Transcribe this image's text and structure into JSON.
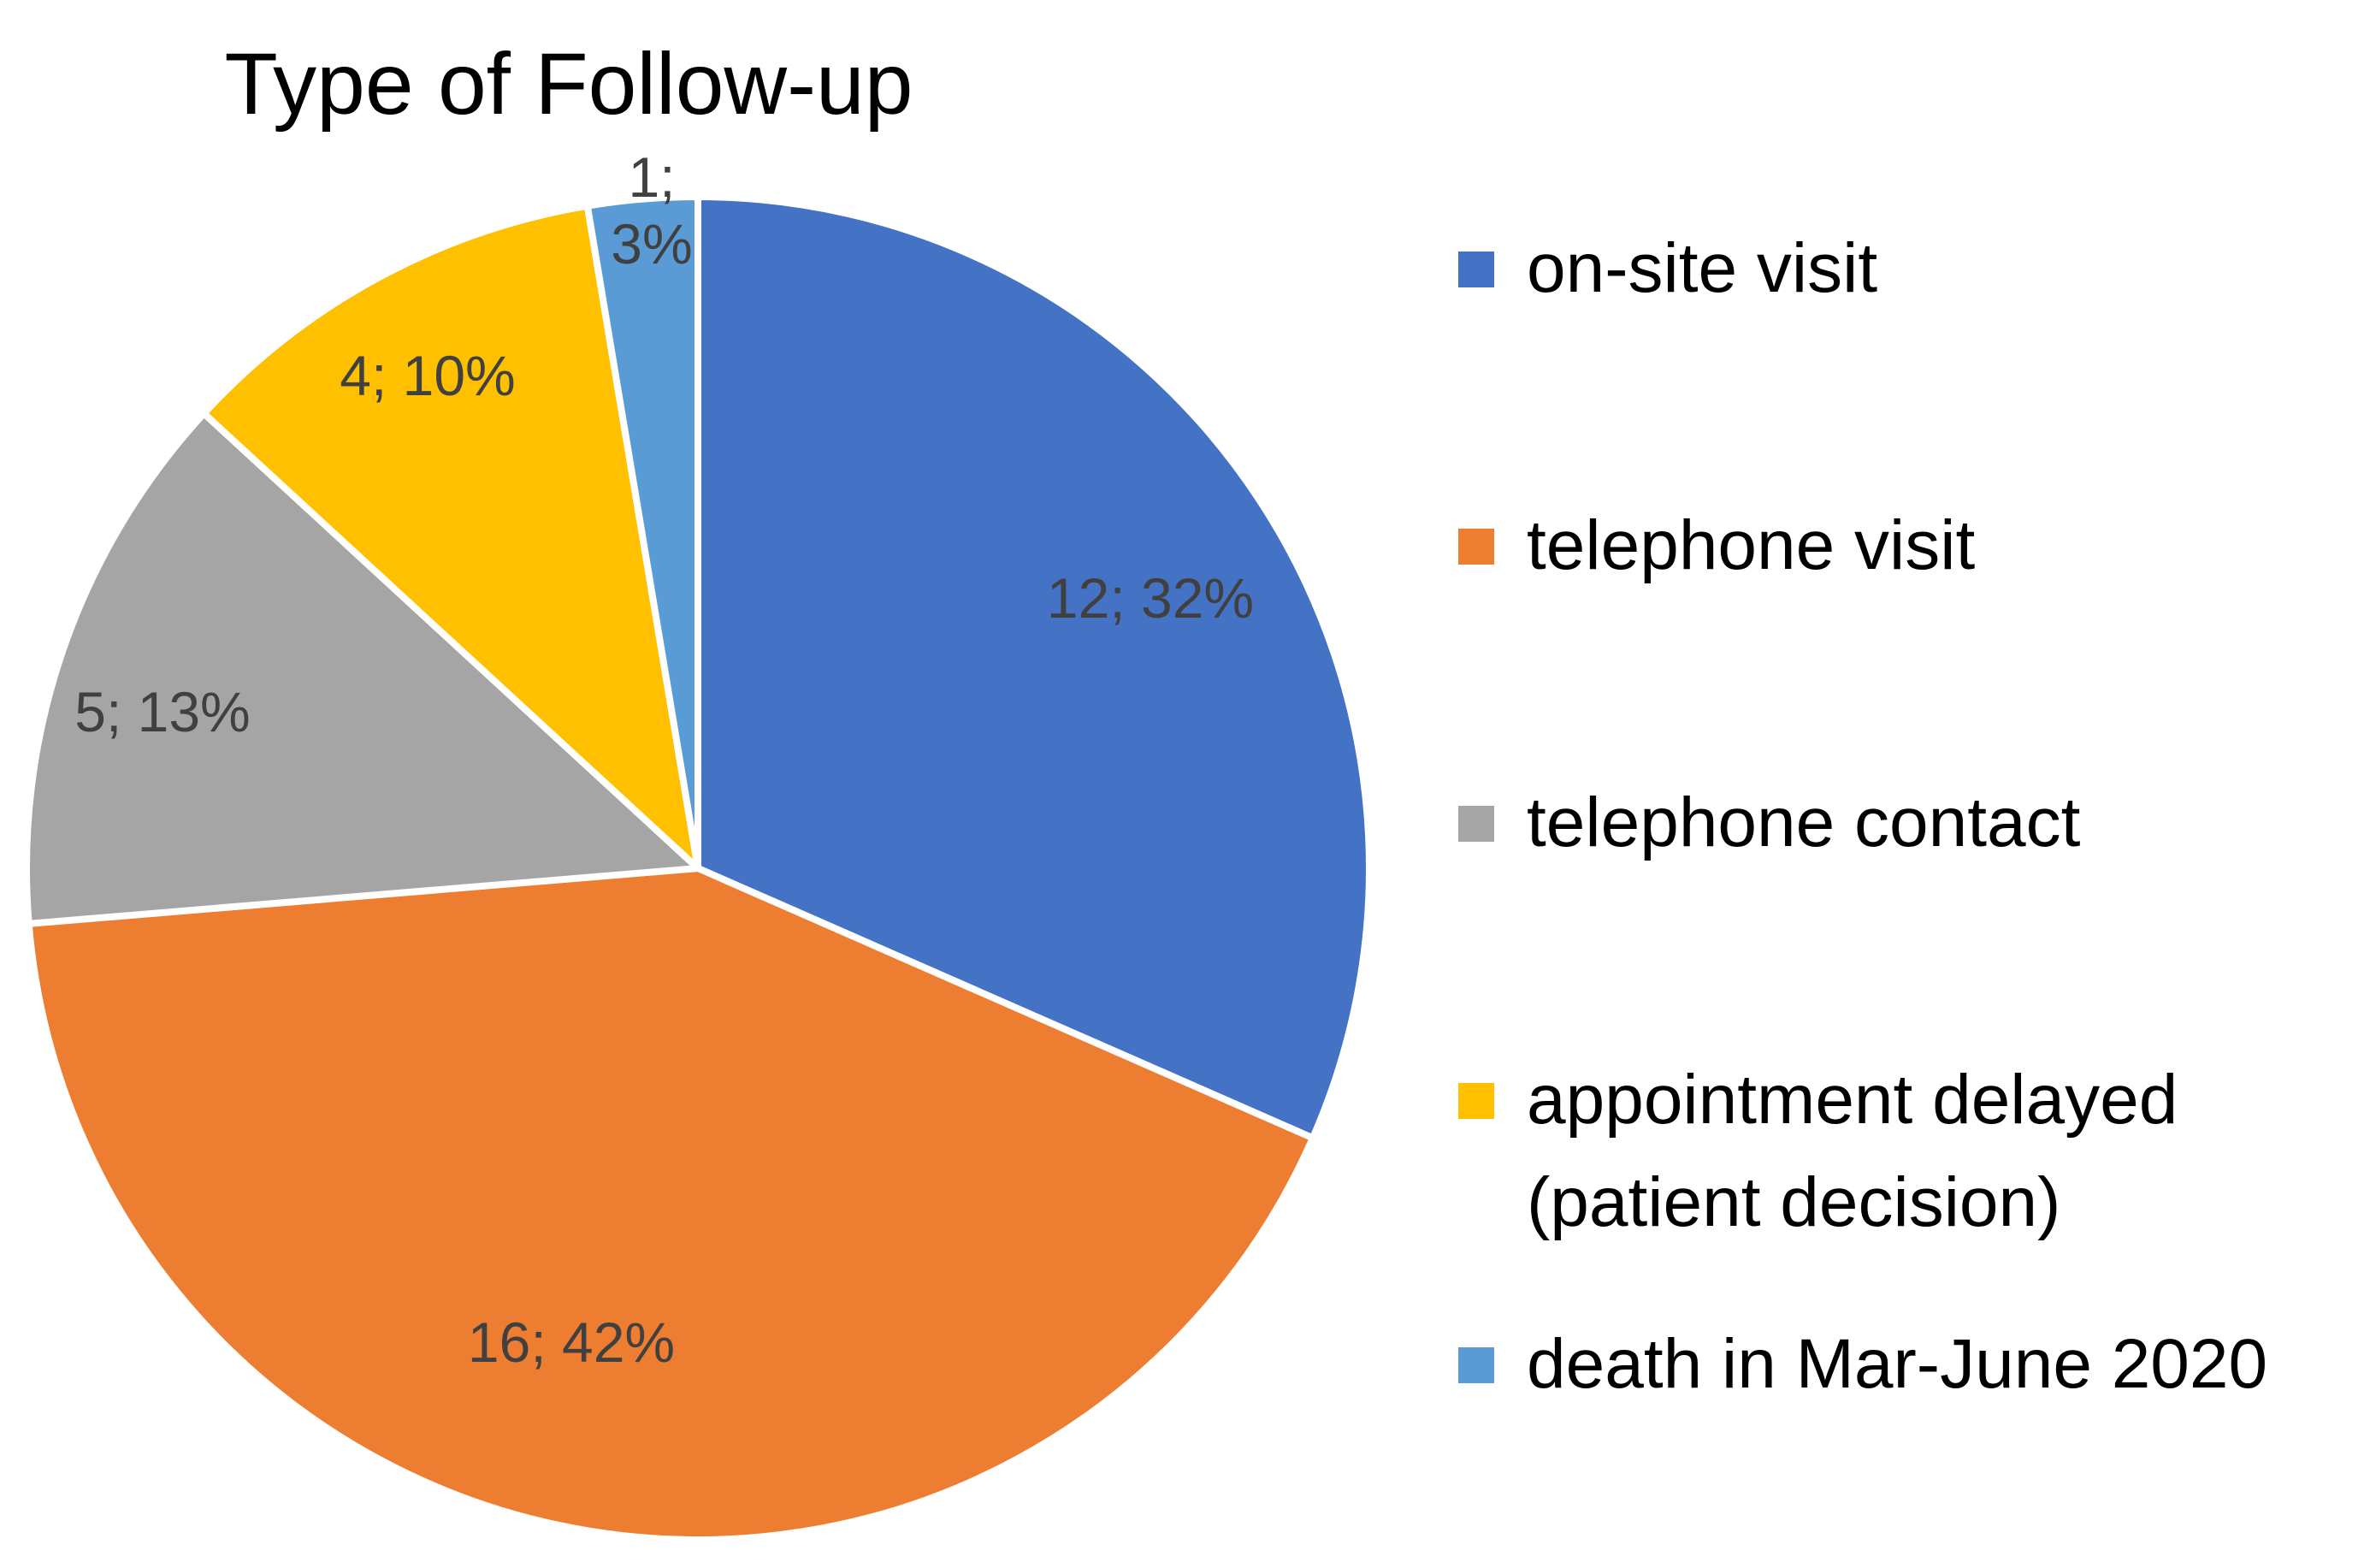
{
  "chart_data": {
    "type": "pie",
    "title": "Type of Follow-up",
    "slices": [
      {
        "label": "on-site visit",
        "value": 12,
        "percent_label": "12; 32%",
        "color": "#4472C4"
      },
      {
        "label": "telephone visit",
        "value": 16,
        "percent_label": "16; 42%",
        "color": "#ED7D31"
      },
      {
        "label": "telephone contact",
        "value": 5,
        "percent_label": "5; 13%",
        "color": "#A5A5A5"
      },
      {
        "label": "appointment delayed (patient decision)",
        "value": 4,
        "percent_label": "4; 10%",
        "color": "#FFC000"
      },
      {
        "label": "death in Mar-June 2020",
        "value": 1,
        "percent_label": "1; 3%",
        "color": "#5B9BD5"
      }
    ],
    "legend_position": "right",
    "data_label_color": "#404040"
  }
}
